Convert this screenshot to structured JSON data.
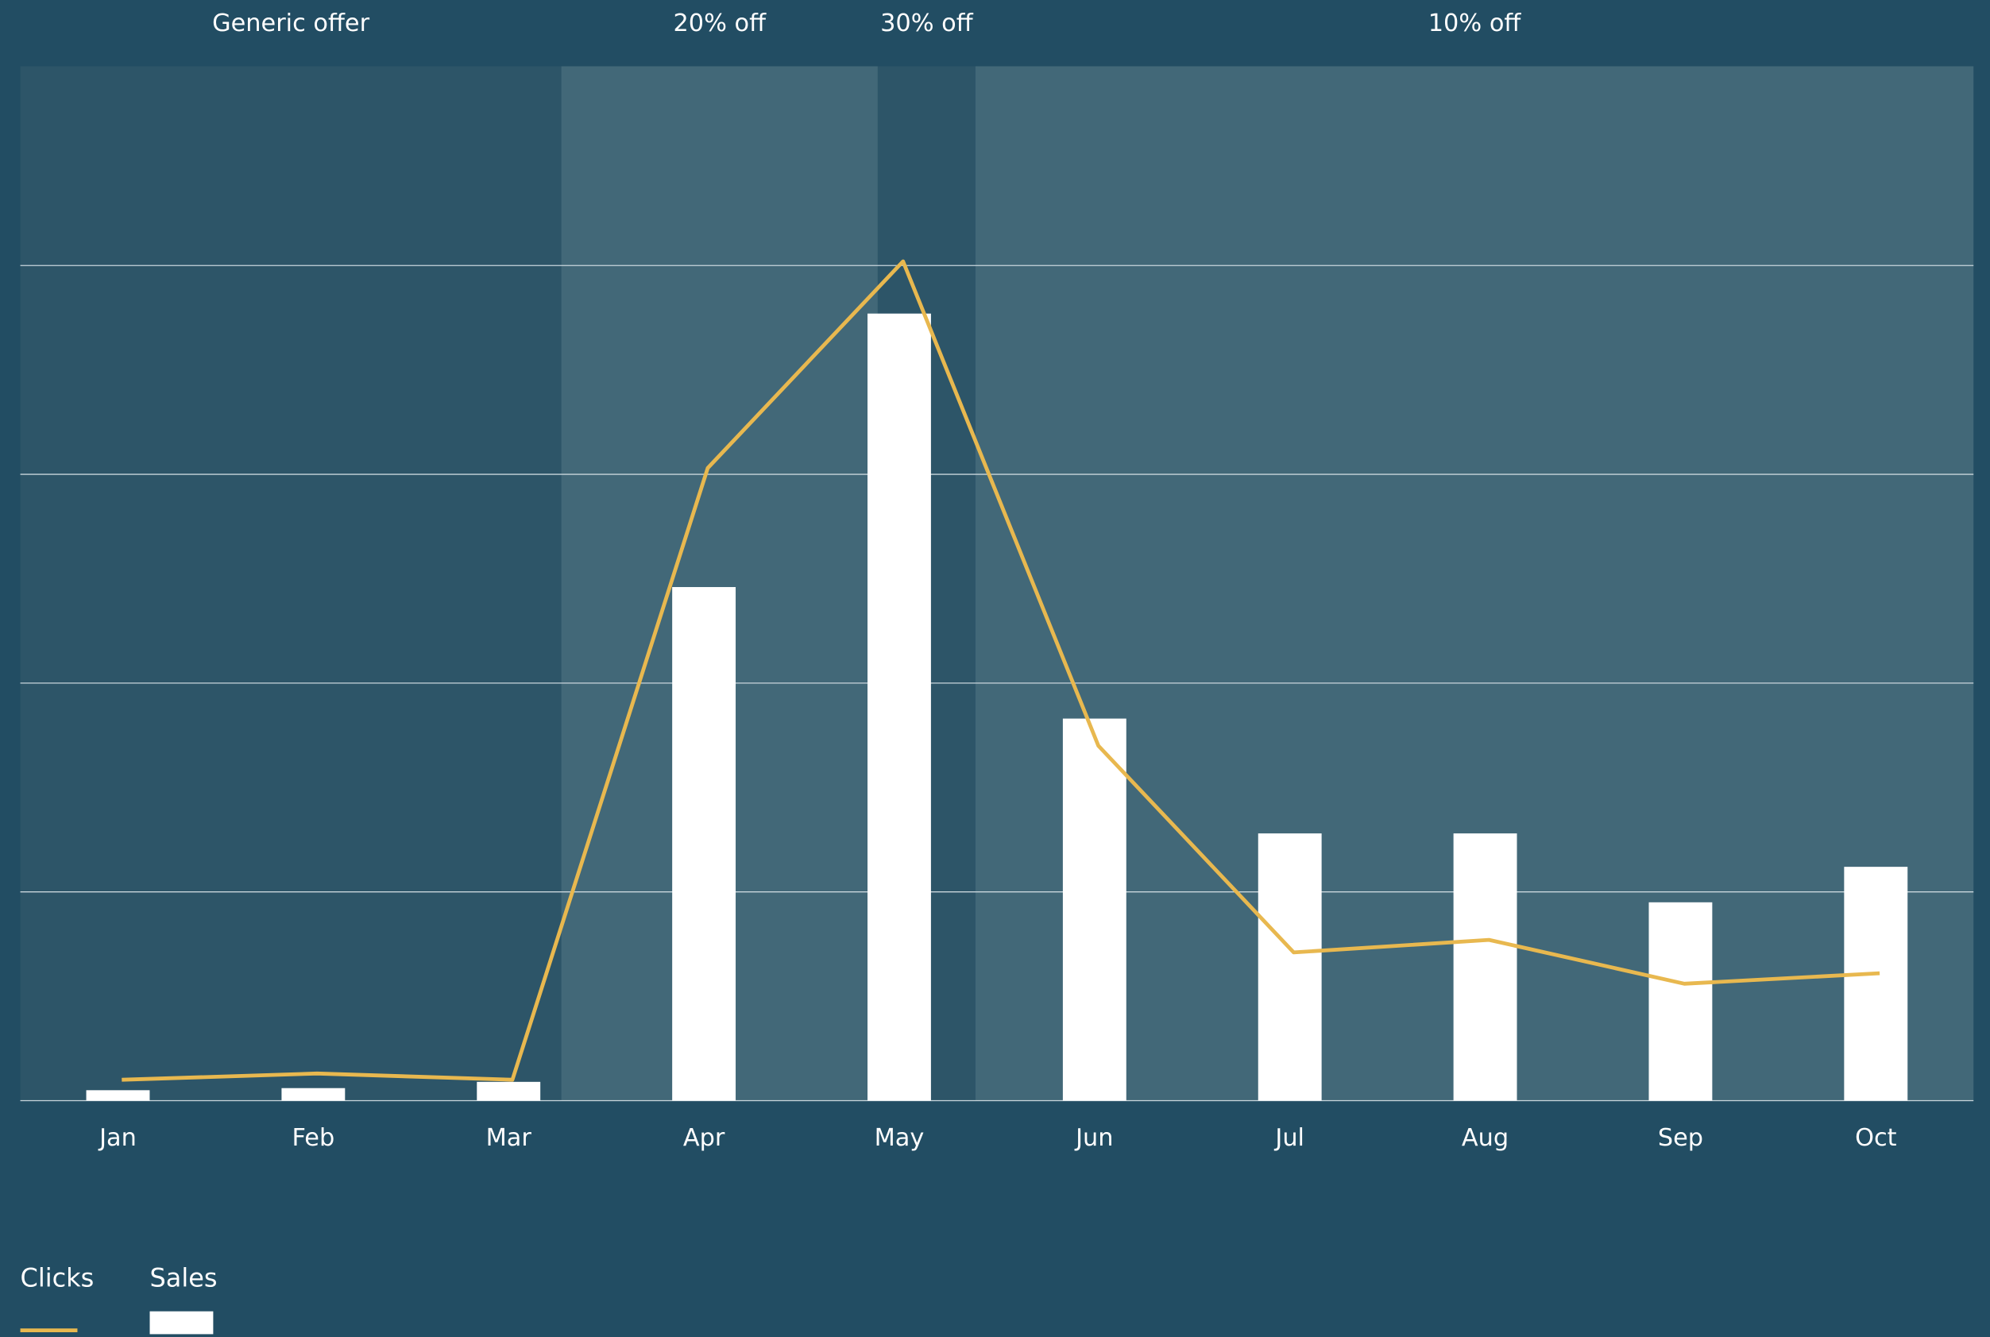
{
  "chart_data": {
    "type": "bar",
    "categories": [
      "Jan",
      "Feb",
      "Mar",
      "Apr",
      "May",
      "Jun",
      "Jul",
      "Aug",
      "Sep",
      "Oct"
    ],
    "series": [
      {
        "name": "Clicks",
        "type": "line",
        "color": "#e8b84f",
        "values": [
          0.1,
          0.13,
          0.1,
          3.03,
          4.02,
          1.7,
          0.71,
          0.77,
          0.56,
          0.61
        ]
      },
      {
        "name": "Sales",
        "type": "bar",
        "color": "#ffffff",
        "values": [
          0.05,
          0.06,
          0.09,
          2.46,
          3.77,
          1.83,
          1.28,
          1.28,
          0.95,
          1.12
        ]
      }
    ],
    "periods": [
      {
        "label": "Generic offer",
        "start": -0.5,
        "end": 2.27,
        "color": "#2d5568"
      },
      {
        "label": "20% off",
        "start": 2.27,
        "end": 3.89,
        "color": "#426878"
      },
      {
        "label": "30% off",
        "start": 3.89,
        "end": 4.39,
        "color": "#2d5568"
      },
      {
        "label": "10% off",
        "start": 4.39,
        "end": 9.5,
        "color": "#426878"
      }
    ],
    "ylim": [
      0,
      5
    ],
    "yticks": [
      0,
      1,
      2,
      3,
      4
    ],
    "grid": true
  }
}
